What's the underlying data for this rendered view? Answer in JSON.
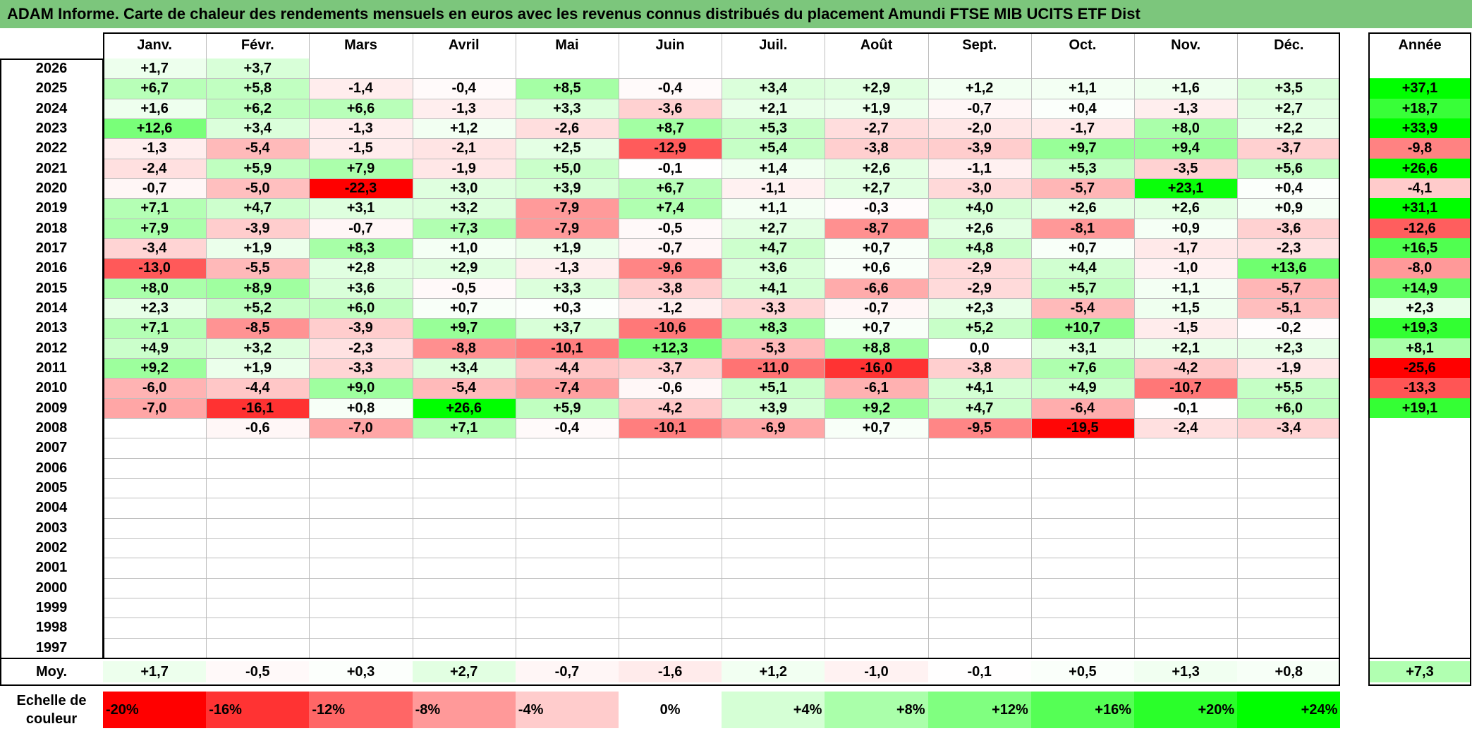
{
  "title": "ADAM Informe. Carte de chaleur des rendements mensuels en euros avec les revenus connus distribués du placement Amundi FTSE MIB UCITS ETF Dist",
  "colors": {
    "title_bg": "#7cc67c",
    "neg_max": "#ff0000",
    "pos_max": "#00ff00",
    "neutral": "#ffffff"
  },
  "chart_data": {
    "type": "heatmap",
    "title": "ADAM Informe. Carte de chaleur des rendements mensuels en euros avec les revenus connus distribués du placement Amundi FTSE MIB UCITS ETF Dist",
    "columns": [
      "Janv.",
      "Févr.",
      "Mars",
      "Avril",
      "Mai",
      "Juin",
      "Juil.",
      "Août",
      "Sept.",
      "Oct.",
      "Nov.",
      "Déc."
    ],
    "year_header": "Année",
    "average_label": "Moy.",
    "rows": [
      {
        "year": "2026",
        "months": [
          "+1,7",
          "+3,7",
          "",
          "",
          "",
          "",
          "",
          "",
          "",
          "",
          "",
          ""
        ],
        "annual": ""
      },
      {
        "year": "2025",
        "months": [
          "+6,7",
          "+5,8",
          "-1,4",
          "-0,4",
          "+8,5",
          "-0,4",
          "+3,4",
          "+2,9",
          "+1,2",
          "+1,1",
          "+1,6",
          "+3,5"
        ],
        "annual": "+37,1"
      },
      {
        "year": "2024",
        "months": [
          "+1,6",
          "+6,2",
          "+6,6",
          "-1,3",
          "+3,3",
          "-3,6",
          "+2,1",
          "+1,9",
          "-0,7",
          "+0,4",
          "-1,3",
          "+2,7"
        ],
        "annual": "+18,7"
      },
      {
        "year": "2023",
        "months": [
          "+12,6",
          "+3,4",
          "-1,3",
          "+1,2",
          "-2,6",
          "+8,7",
          "+5,3",
          "-2,7",
          "-2,0",
          "-1,7",
          "+8,0",
          "+2,2"
        ],
        "annual": "+33,9"
      },
      {
        "year": "2022",
        "months": [
          "-1,3",
          "-5,4",
          "-1,5",
          "-2,1",
          "+2,5",
          "-12,9",
          "+5,4",
          "-3,8",
          "-3,9",
          "+9,7",
          "+9,4",
          "-3,7"
        ],
        "annual": "-9,8"
      },
      {
        "year": "2021",
        "months": [
          "-2,4",
          "+5,9",
          "+7,9",
          "-1,9",
          "+5,0",
          "-0,1",
          "+1,4",
          "+2,6",
          "-1,1",
          "+5,3",
          "-3,5",
          "+5,6"
        ],
        "annual": "+26,6"
      },
      {
        "year": "2020",
        "months": [
          "-0,7",
          "-5,0",
          "-22,3",
          "+3,0",
          "+3,9",
          "+6,7",
          "-1,1",
          "+2,7",
          "-3,0",
          "-5,7",
          "+23,1",
          "+0,4"
        ],
        "annual": "-4,1"
      },
      {
        "year": "2019",
        "months": [
          "+7,1",
          "+4,7",
          "+3,1",
          "+3,2",
          "-7,9",
          "+7,4",
          "+1,1",
          "-0,3",
          "+4,0",
          "+2,6",
          "+2,6",
          "+0,9"
        ],
        "annual": "+31,1"
      },
      {
        "year": "2018",
        "months": [
          "+7,9",
          "-3,9",
          "-0,7",
          "+7,3",
          "-7,9",
          "-0,5",
          "+2,7",
          "-8,7",
          "+2,6",
          "-8,1",
          "+0,9",
          "-3,6"
        ],
        "annual": "-12,6"
      },
      {
        "year": "2017",
        "months": [
          "-3,4",
          "+1,9",
          "+8,3",
          "+1,0",
          "+1,9",
          "-0,7",
          "+4,7",
          "+0,7",
          "+4,8",
          "+0,7",
          "-1,7",
          "-2,3"
        ],
        "annual": "+16,5"
      },
      {
        "year": "2016",
        "months": [
          "-13,0",
          "-5,5",
          "+2,8",
          "+2,9",
          "-1,3",
          "-9,6",
          "+3,6",
          "+0,6",
          "-2,9",
          "+4,4",
          "-1,0",
          "+13,6"
        ],
        "annual": "-8,0"
      },
      {
        "year": "2015",
        "months": [
          "+8,0",
          "+8,9",
          "+3,6",
          "-0,5",
          "+3,3",
          "-3,8",
          "+4,1",
          "-6,6",
          "-2,9",
          "+5,7",
          "+1,1",
          "-5,7"
        ],
        "annual": "+14,9"
      },
      {
        "year": "2014",
        "months": [
          "+2,3",
          "+5,2",
          "+6,0",
          "+0,7",
          "+0,3",
          "-1,2",
          "-3,3",
          "-0,7",
          "+2,3",
          "-5,4",
          "+1,5",
          "-5,1"
        ],
        "annual": "+2,3"
      },
      {
        "year": "2013",
        "months": [
          "+7,1",
          "-8,5",
          "-3,9",
          "+9,7",
          "+3,7",
          "-10,6",
          "+8,3",
          "+0,7",
          "+5,2",
          "+10,7",
          "-1,5",
          "-0,2"
        ],
        "annual": "+19,3"
      },
      {
        "year": "2012",
        "months": [
          "+4,9",
          "+3,2",
          "-2,3",
          "-8,8",
          "-10,1",
          "+12,3",
          "-5,3",
          "+8,8",
          "0,0",
          "+3,1",
          "+2,1",
          "+2,3"
        ],
        "annual": "+8,1"
      },
      {
        "year": "2011",
        "months": [
          "+9,2",
          "+1,9",
          "-3,3",
          "+3,4",
          "-4,4",
          "-3,7",
          "-11,0",
          "-16,0",
          "-3,8",
          "+7,6",
          "-4,2",
          "-1,9"
        ],
        "annual": "-25,6"
      },
      {
        "year": "2010",
        "months": [
          "-6,0",
          "-4,4",
          "+9,0",
          "-5,4",
          "-7,4",
          "-0,6",
          "+5,1",
          "-6,1",
          "+4,1",
          "+4,9",
          "-10,7",
          "+5,5"
        ],
        "annual": "-13,3"
      },
      {
        "year": "2009",
        "months": [
          "-7,0",
          "-16,1",
          "+0,8",
          "+26,6",
          "+5,9",
          "-4,2",
          "+3,9",
          "+9,2",
          "+4,7",
          "-6,4",
          "-0,1",
          "+6,0"
        ],
        "annual": "+19,1"
      },
      {
        "year": "2008",
        "months": [
          "",
          "-0,6",
          "-7,0",
          "+7,1",
          "-0,4",
          "-10,1",
          "-6,9",
          "+0,7",
          "-9,5",
          "-19,5",
          "-2,4",
          "-3,4"
        ],
        "annual": ""
      },
      {
        "year": "2007",
        "months": [
          "",
          "",
          "",
          "",
          "",
          "",
          "",
          "",
          "",
          "",
          "",
          ""
        ],
        "annual": ""
      },
      {
        "year": "2006",
        "months": [
          "",
          "",
          "",
          "",
          "",
          "",
          "",
          "",
          "",
          "",
          "",
          ""
        ],
        "annual": ""
      },
      {
        "year": "2005",
        "months": [
          "",
          "",
          "",
          "",
          "",
          "",
          "",
          "",
          "",
          "",
          "",
          ""
        ],
        "annual": ""
      },
      {
        "year": "2004",
        "months": [
          "",
          "",
          "",
          "",
          "",
          "",
          "",
          "",
          "",
          "",
          "",
          ""
        ],
        "annual": ""
      },
      {
        "year": "2003",
        "months": [
          "",
          "",
          "",
          "",
          "",
          "",
          "",
          "",
          "",
          "",
          "",
          ""
        ],
        "annual": ""
      },
      {
        "year": "2002",
        "months": [
          "",
          "",
          "",
          "",
          "",
          "",
          "",
          "",
          "",
          "",
          "",
          ""
        ],
        "annual": ""
      },
      {
        "year": "2001",
        "months": [
          "",
          "",
          "",
          "",
          "",
          "",
          "",
          "",
          "",
          "",
          "",
          ""
        ],
        "annual": ""
      },
      {
        "year": "2000",
        "months": [
          "",
          "",
          "",
          "",
          "",
          "",
          "",
          "",
          "",
          "",
          "",
          ""
        ],
        "annual": ""
      },
      {
        "year": "1999",
        "months": [
          "",
          "",
          "",
          "",
          "",
          "",
          "",
          "",
          "",
          "",
          "",
          ""
        ],
        "annual": ""
      },
      {
        "year": "1998",
        "months": [
          "",
          "",
          "",
          "",
          "",
          "",
          "",
          "",
          "",
          "",
          "",
          ""
        ],
        "annual": ""
      },
      {
        "year": "1997",
        "months": [
          "",
          "",
          "",
          "",
          "",
          "",
          "",
          "",
          "",
          "",
          "",
          ""
        ],
        "annual": ""
      }
    ],
    "averages": [
      "+1,7",
      "-0,5",
      "+0,3",
      "+2,7",
      "-0,7",
      "-1,6",
      "+1,2",
      "-1,0",
      "-0,1",
      "+0,5",
      "+1,3",
      "+0,8"
    ],
    "annual_average": "+7,3",
    "scale": {
      "label": "Echelle de couleur",
      "items": [
        {
          "label": "-20%",
          "value": -20
        },
        {
          "label": "-16%",
          "value": -16
        },
        {
          "label": "-12%",
          "value": -12
        },
        {
          "label": "-8%",
          "value": -8
        },
        {
          "label": "-4%",
          "value": -4
        },
        {
          "label": "0%",
          "value": 0
        },
        {
          "label": "+4%",
          "value": 4
        },
        {
          "label": "+8%",
          "value": 8
        },
        {
          "label": "+12%",
          "value": 12
        },
        {
          "label": "+16%",
          "value": 16
        },
        {
          "label": "+20%",
          "value": 20
        },
        {
          "label": "+24%",
          "value": 24
        }
      ]
    },
    "color_range": [
      -20,
      24
    ]
  }
}
